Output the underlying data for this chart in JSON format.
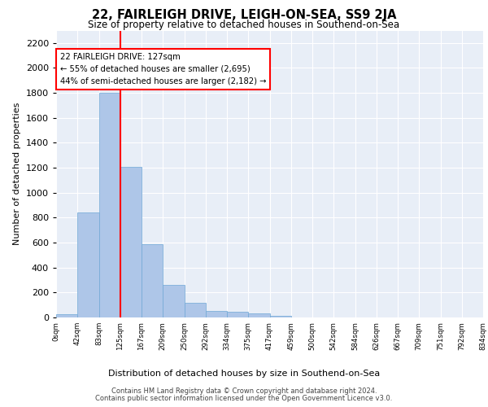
{
  "title": "22, FAIRLEIGH DRIVE, LEIGH-ON-SEA, SS9 2JA",
  "subtitle": "Size of property relative to detached houses in Southend-on-Sea",
  "xlabel": "Distribution of detached houses by size in Southend-on-Sea",
  "ylabel": "Number of detached properties",
  "bar_values": [
    25,
    840,
    1800,
    1210,
    585,
    260,
    115,
    50,
    45,
    30,
    15,
    0,
    0,
    0,
    0,
    0,
    0,
    0,
    0
  ],
  "bar_color": "#aec6e8",
  "bar_edge_color": "#6fa8d6",
  "x_labels": [
    "0sqm",
    "42sqm",
    "83sqm",
    "125sqm",
    "167sqm",
    "209sqm",
    "250sqm",
    "292sqm",
    "334sqm",
    "375sqm",
    "417sqm",
    "459sqm",
    "500sqm",
    "542sqm",
    "584sqm",
    "626sqm",
    "667sqm",
    "709sqm",
    "751sqm",
    "792sqm",
    "834sqm"
  ],
  "ylim": [
    0,
    2300
  ],
  "yticks": [
    0,
    200,
    400,
    600,
    800,
    1000,
    1200,
    1400,
    1600,
    1800,
    2000,
    2200
  ],
  "property_line_x": 3,
  "annotation_text": "22 FAIRLEIGH DRIVE: 127sqm\n← 55% of detached houses are smaller (2,695)\n44% of semi-detached houses are larger (2,182) →",
  "annotation_box_color": "white",
  "annotation_box_edgecolor": "red",
  "vline_color": "red",
  "background_color": "#e8eef7",
  "footer_line1": "Contains HM Land Registry data © Crown copyright and database right 2024.",
  "footer_line2": "Contains public sector information licensed under the Open Government Licence v3.0."
}
